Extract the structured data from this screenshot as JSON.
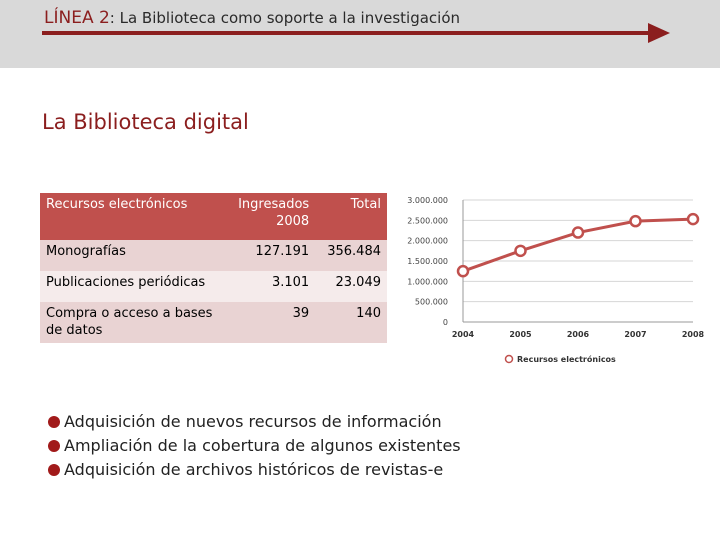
{
  "header": {
    "line_label": "LÍNEA 2",
    "line_text": ": La Biblioteca como soporte a la investigación"
  },
  "slide_title": "La Biblioteca digital",
  "table": {
    "headers": [
      "Recursos electrónicos",
      "Ingresados 2008",
      "Total"
    ],
    "rows": [
      [
        "Monografías",
        "127.191",
        "356.484"
      ],
      [
        "Publicaciones periódicas",
        "3.101",
        "23.049"
      ],
      [
        "Compra o acceso a bases de datos",
        "39",
        "140"
      ]
    ]
  },
  "bullets": [
    "Adquisición de nuevos  recursos de información",
    "Ampliación de la cobertura de algunos existentes",
    "Adquisición de archivos históricos de revistas-e"
  ],
  "colors": {
    "accent": "#8b1e1e",
    "header_row": "#c0504d",
    "series": "#c0504d"
  },
  "chart_data": {
    "type": "line",
    "title": "",
    "xlabel": "",
    "ylabel": "",
    "categories": [
      "2004",
      "2005",
      "2006",
      "2007",
      "2008"
    ],
    "series": [
      {
        "name": "Recursos electrónicos",
        "values": [
          1250000,
          1750000,
          2200000,
          2480000,
          2530000
        ]
      }
    ],
    "ylim": [
      0,
      3000000
    ],
    "yticks": [
      0,
      500000,
      1000000,
      1500000,
      2000000,
      2500000,
      3000000
    ],
    "ytick_labels": [
      "0",
      "500.000",
      "1.000.000",
      "1.500.000",
      "2.000.000",
      "2.500.000",
      "3.000.000"
    ],
    "grid": true,
    "legend": "bottom"
  }
}
